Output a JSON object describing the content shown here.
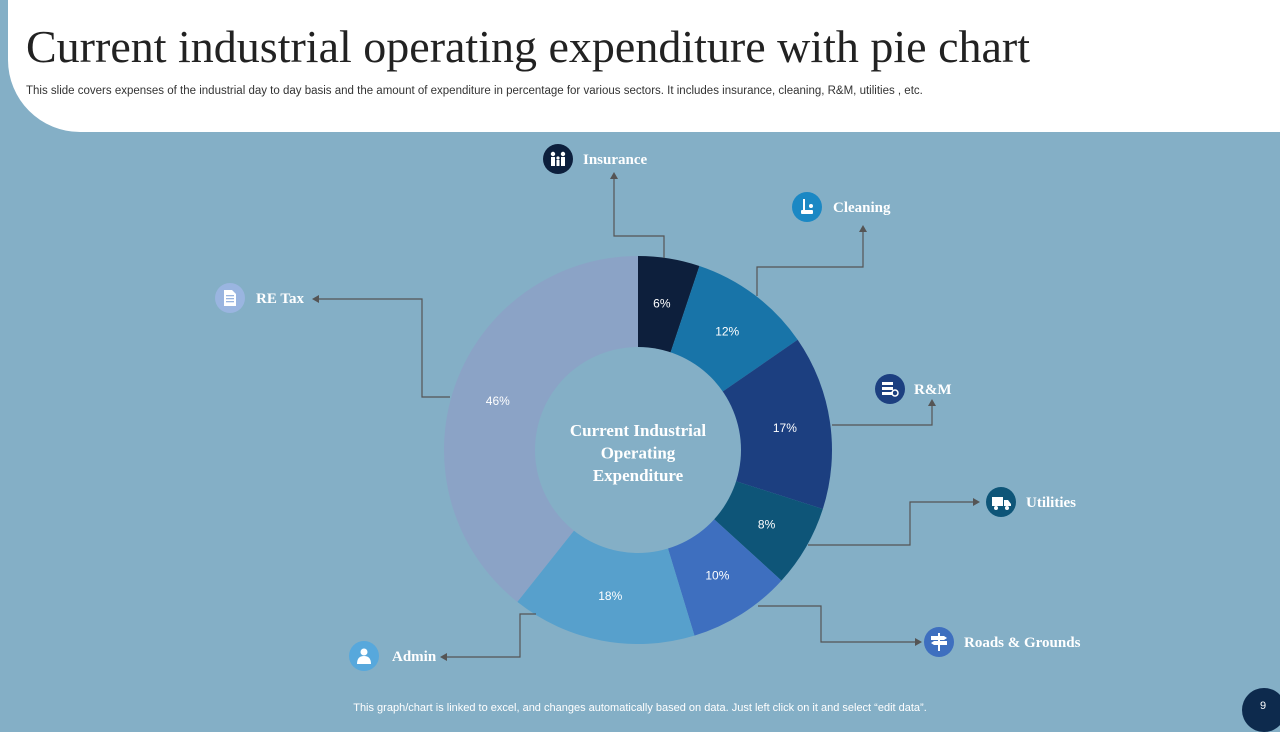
{
  "header": {
    "title": "Current industrial operating expenditure with pie chart",
    "subtitle": "This slide covers expenses of the industrial day to day basis  and the amount of expenditure in percentage for various sectors. It includes insurance, cleaning, R&M, utilities , etc."
  },
  "chart_data": {
    "type": "pie",
    "center_label": [
      "Current Industrial",
      "Operating",
      "Expenditure"
    ],
    "categories": [
      "Insurance",
      "Cleaning",
      "R&M",
      "Utilities",
      "Roads & Grounds",
      "Admin",
      "RE Tax"
    ],
    "values": [
      6,
      12,
      17,
      8,
      10,
      18,
      46
    ],
    "value_labels": [
      "6%",
      "12%",
      "17%",
      "8%",
      "10%",
      "18%",
      "46%"
    ],
    "colors": [
      "#0d1f3c",
      "#1874a8",
      "#1c3f80",
      "#0e5578",
      "#3e6fbf",
      "#57a0cc",
      "#8ba3c6"
    ],
    "icons": [
      "family-icon",
      "cleaning-icon",
      "repair-icon",
      "truck-icon",
      "signpost-icon",
      "person-icon",
      "document-icon"
    ]
  },
  "footer": {
    "note": "This graph/chart is linked to excel,  and changes automatically based on data. Just left click on it and select “edit data”.",
    "page_number": "9"
  }
}
